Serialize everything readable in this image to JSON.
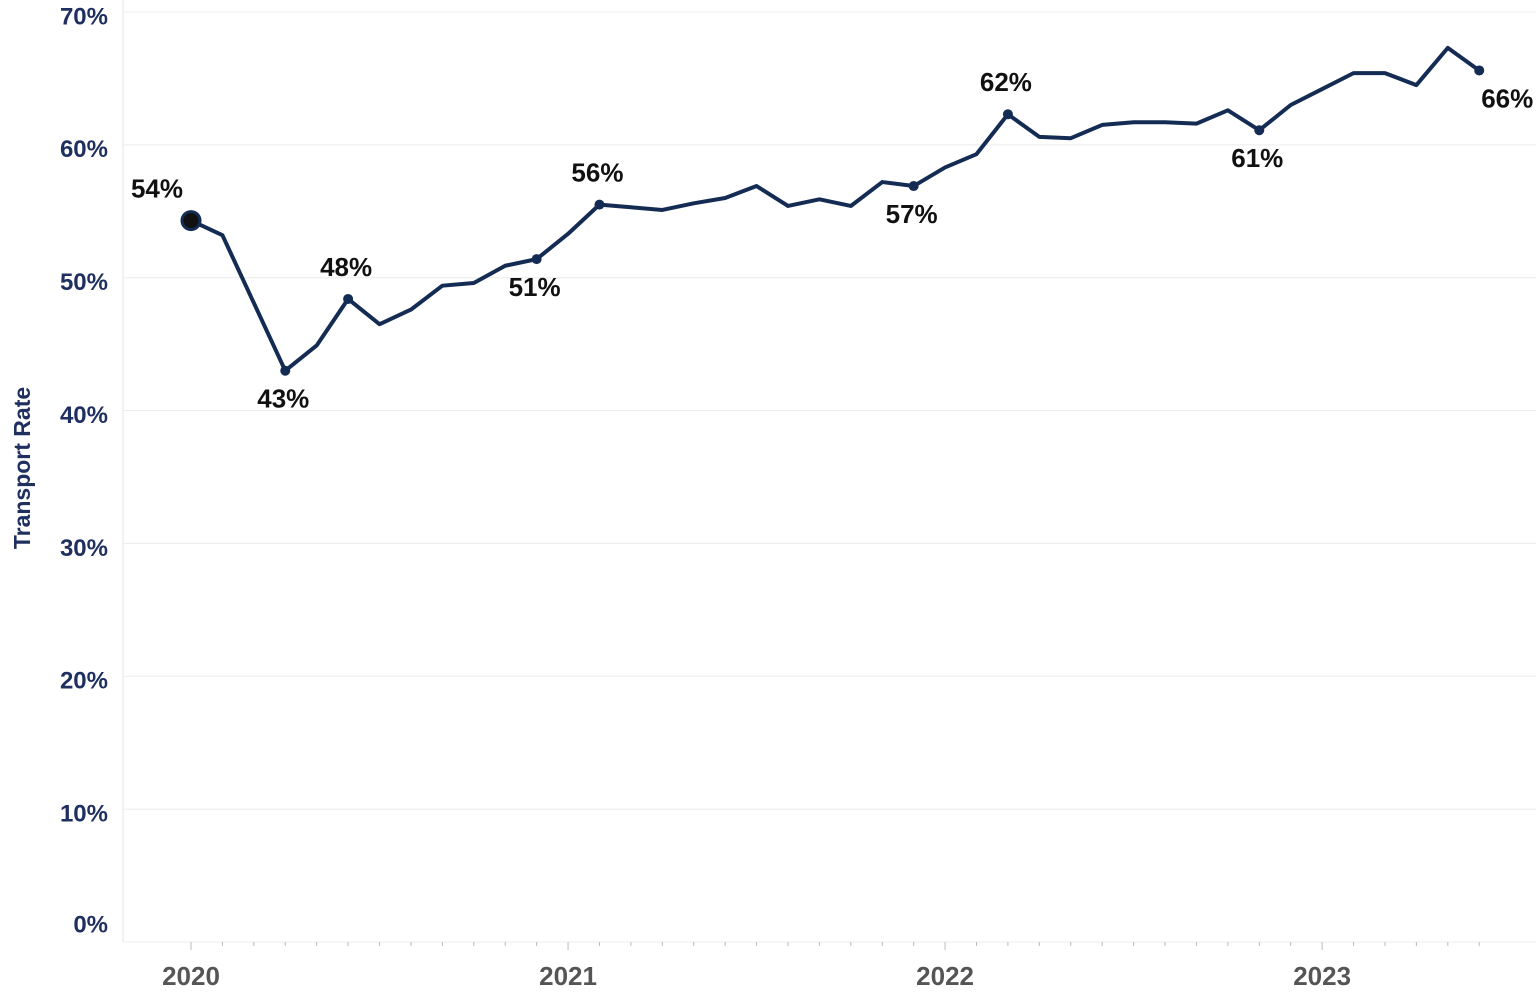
{
  "chart_data": {
    "type": "line",
    "y_label": "Transport Rate",
    "categories": [
      "2020",
      null,
      null,
      null,
      null,
      null,
      null,
      null,
      null,
      null,
      null,
      null,
      "2021",
      null,
      null,
      null,
      null,
      null,
      null,
      null,
      null,
      null,
      null,
      null,
      "2022",
      null,
      null,
      null,
      null,
      null,
      null,
      null,
      null,
      null,
      null,
      null,
      "2023",
      null,
      null,
      null,
      null,
      null
    ],
    "series": [
      {
        "name": "Transport Rate",
        "color": "#142c54",
        "values": [
          54.3,
          53.2,
          48.1,
          43.0,
          44.9,
          48.4,
          46.5,
          47.6,
          49.4,
          49.6,
          50.9,
          51.4,
          53.3,
          55.5,
          55.3,
          55.1,
          55.6,
          56.0,
          56.9,
          55.4,
          55.9,
          55.4,
          57.2,
          56.9,
          58.3,
          59.3,
          62.3,
          60.6,
          60.5,
          61.5,
          61.7,
          61.7,
          61.6,
          62.6,
          61.1,
          63.0,
          64.2,
          65.4,
          65.4,
          64.5,
          67.3,
          65.6
        ],
        "value_labels": [
          "54%",
          null,
          null,
          "43%",
          null,
          "48%",
          null,
          null,
          null,
          null,
          null,
          "51%",
          null,
          "56%",
          null,
          null,
          null,
          null,
          null,
          null,
          null,
          null,
          null,
          "57%",
          null,
          null,
          "62%",
          null,
          null,
          null,
          null,
          null,
          null,
          null,
          "61%",
          null,
          null,
          null,
          null,
          null,
          null,
          "66%"
        ]
      }
    ],
    "ylim": [
      0,
      70
    ],
    "yticks": [
      {
        "value": 0,
        "label": "0%"
      },
      {
        "value": 10,
        "label": "10%"
      },
      {
        "value": 20,
        "label": "20%"
      },
      {
        "value": 30,
        "label": "30%"
      },
      {
        "value": 40,
        "label": "40%"
      },
      {
        "value": 50,
        "label": "50%"
      },
      {
        "value": 60,
        "label": "60%"
      },
      {
        "value": 70,
        "label": "70%"
      }
    ],
    "grid": true
  }
}
